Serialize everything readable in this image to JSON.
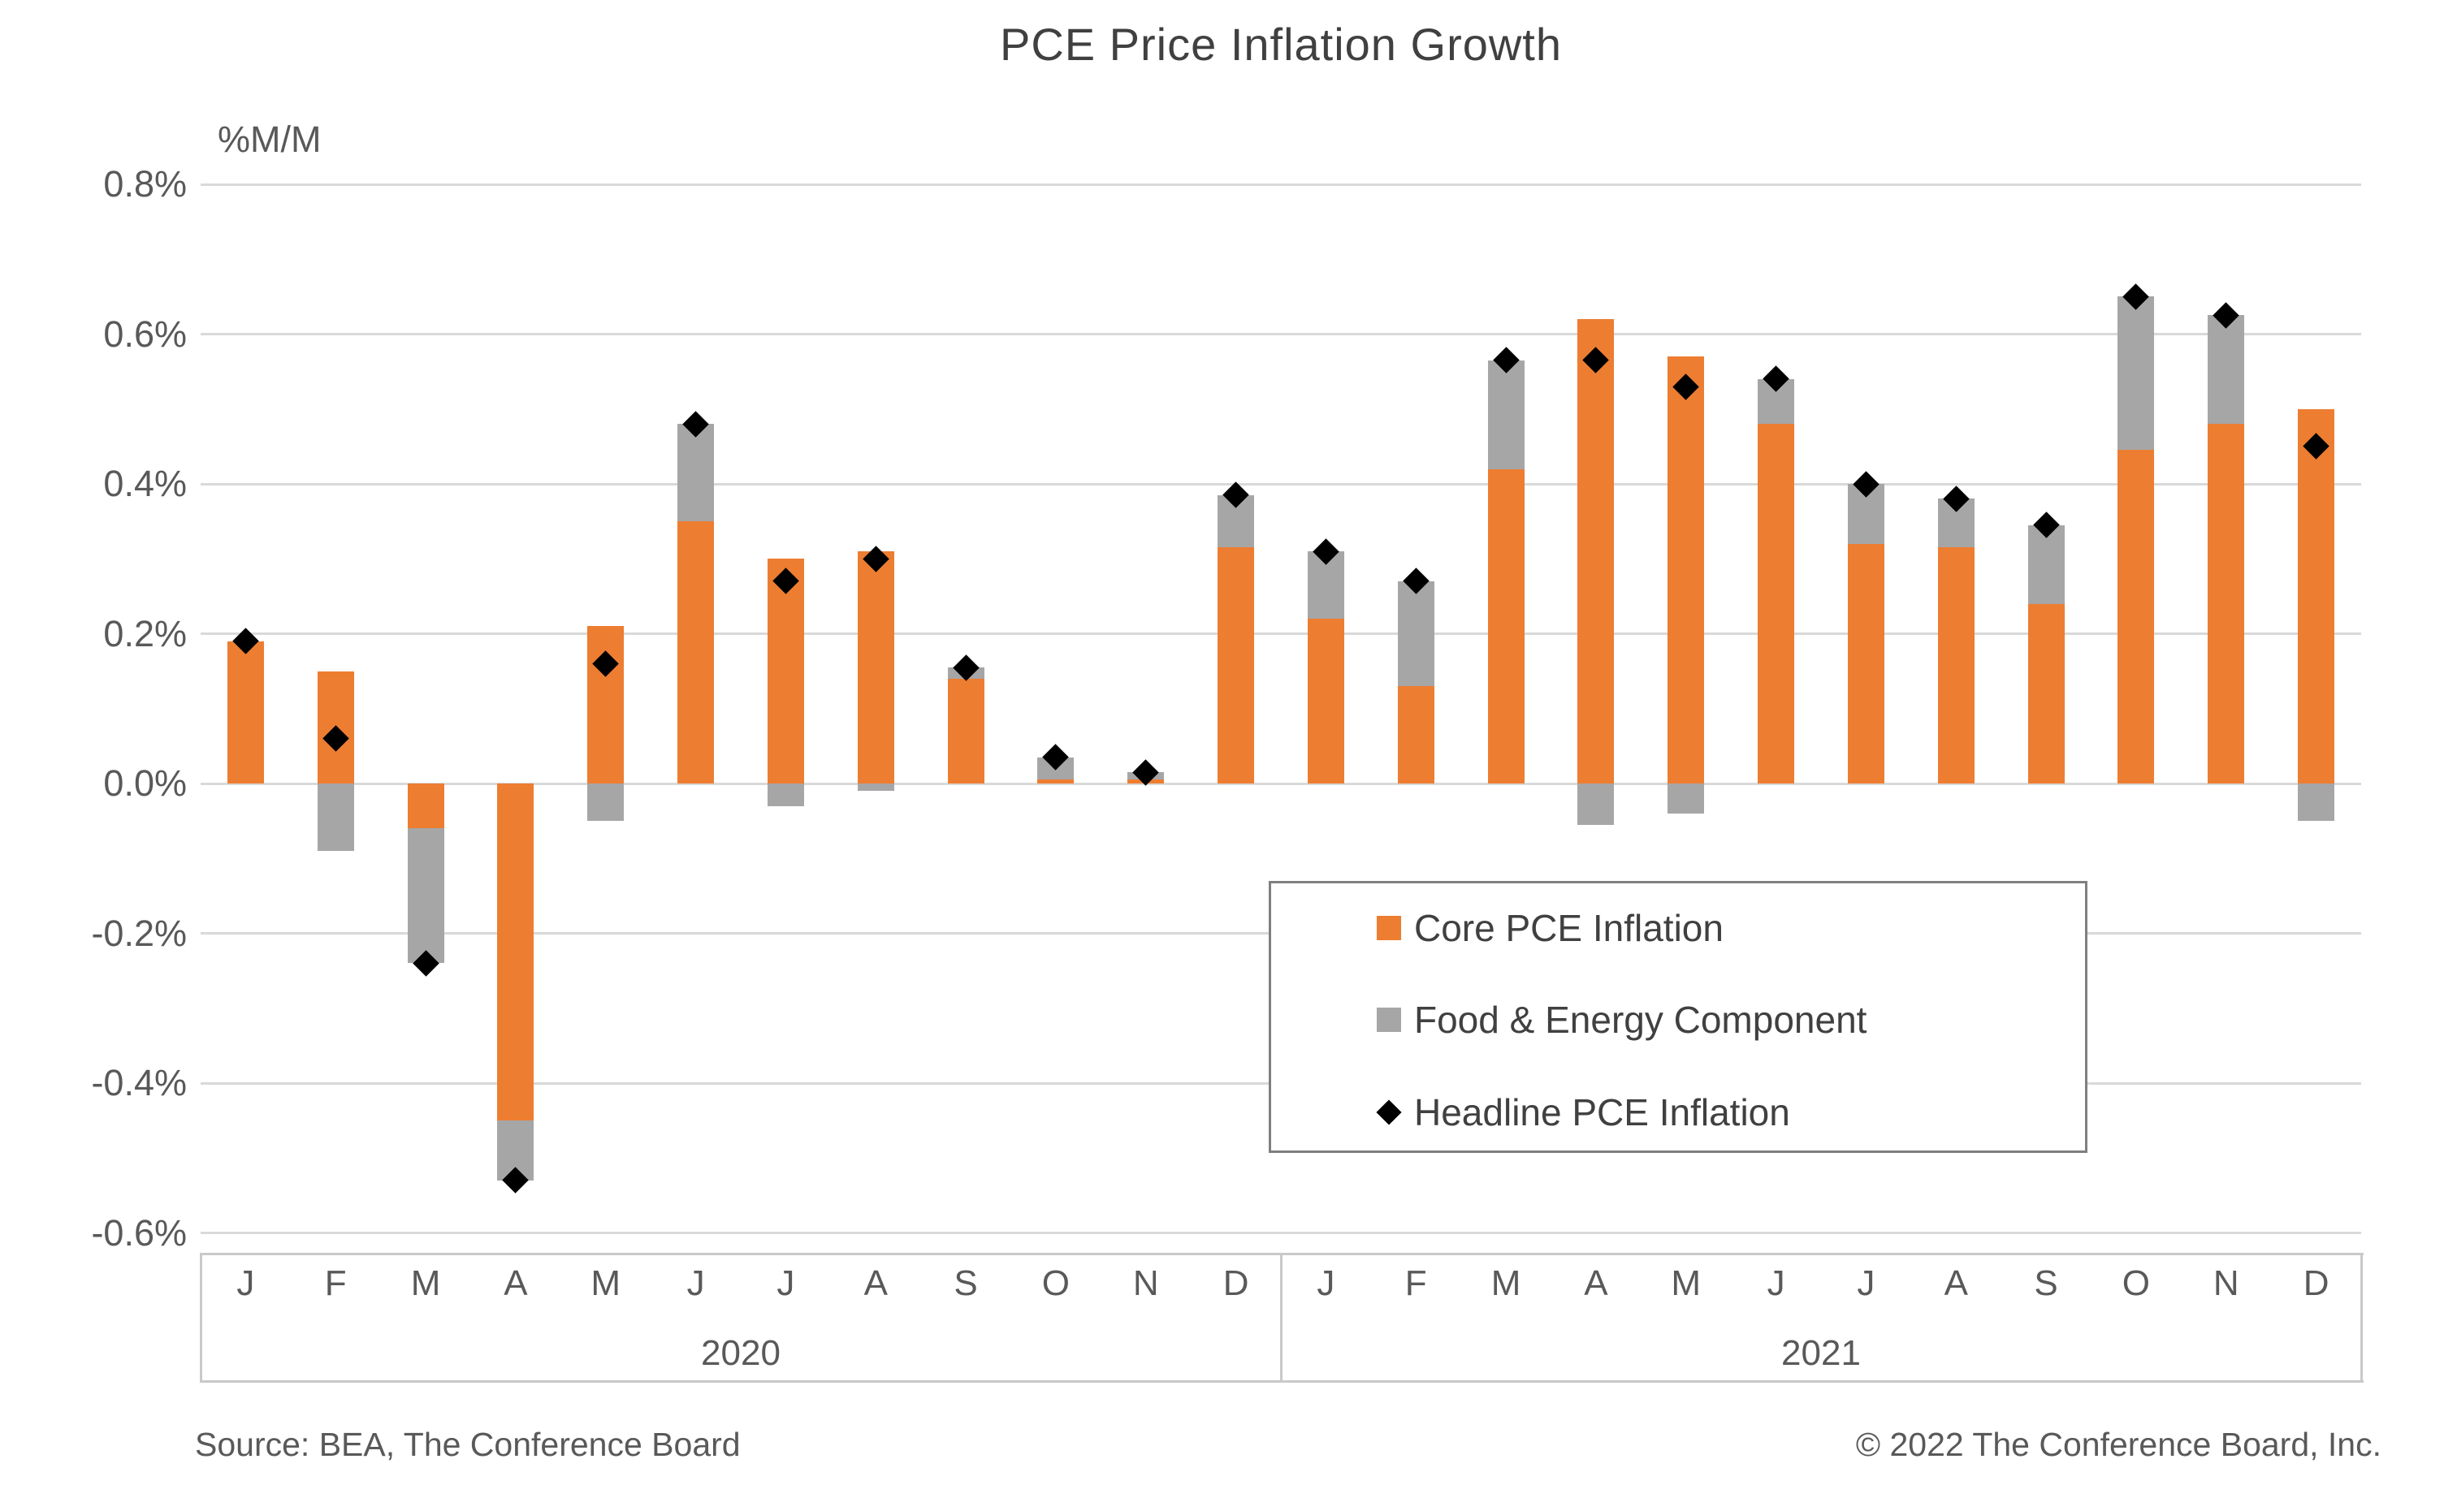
{
  "title": "PCE Price Inflation Growth",
  "y_axis": {
    "unit_label": "%M/M",
    "ticks": [
      "0.8%",
      "0.6%",
      "0.4%",
      "0.2%",
      "0.0%",
      "-0.2%",
      "-0.4%",
      "-0.6%"
    ],
    "tick_values": [
      0.8,
      0.6,
      0.4,
      0.2,
      0.0,
      -0.2,
      -0.4,
      -0.6
    ],
    "min": -0.6,
    "max": 0.8,
    "step": 0.2
  },
  "x_axis": {
    "month_labels": [
      "J",
      "F",
      "M",
      "A",
      "M",
      "J",
      "J",
      "A",
      "S",
      "O",
      "N",
      "D",
      "J",
      "F",
      "M",
      "A",
      "M",
      "J",
      "J",
      "A",
      "S",
      "O",
      "N",
      "D"
    ],
    "year_groups": [
      {
        "label": "2020",
        "span": 12
      },
      {
        "label": "2021",
        "span": 12
      }
    ]
  },
  "legend": {
    "items": [
      {
        "label": "Core PCE Inflation",
        "marker": "square",
        "color": "#ED7D31"
      },
      {
        "label": "Food & Energy Component",
        "marker": "square",
        "color": "#A6A6A6"
      },
      {
        "label": "Headline PCE Inflation",
        "marker": "diamond",
        "color": "#000000"
      }
    ]
  },
  "footer": {
    "source": "Source: BEA, The Conference Board",
    "copyright": "© 2022 The Conference Board, Inc."
  },
  "colors": {
    "core": "#ED7D31",
    "food_energy": "#A6A6A6",
    "headline": "#000000",
    "gridline": "#D9D9D9",
    "axis_line": "#C9C9C9",
    "text": "#595959",
    "title_text": "#404040"
  },
  "chart_data": {
    "type": "bar",
    "stacked": true,
    "title": "PCE Price Inflation Growth",
    "xlabel": "",
    "ylabel": "%M/M",
    "ylim": [
      -0.6,
      0.8
    ],
    "grid": true,
    "legend_position": "inside-right",
    "categories": [
      "Jan 2020",
      "Feb 2020",
      "Mar 2020",
      "Apr 2020",
      "May 2020",
      "Jun 2020",
      "Jul 2020",
      "Aug 2020",
      "Sep 2020",
      "Oct 2020",
      "Nov 2020",
      "Dec 2020",
      "Jan 2021",
      "Feb 2021",
      "Mar 2021",
      "Apr 2021",
      "May 2021",
      "Jun 2021",
      "Jul 2021",
      "Aug 2021",
      "Sep 2021",
      "Oct 2021",
      "Nov 2021",
      "Dec 2021"
    ],
    "series": [
      {
        "name": "Core PCE Inflation",
        "type": "bar",
        "color": "#ED7D31",
        "values": [
          0.19,
          0.15,
          -0.06,
          -0.45,
          0.21,
          0.35,
          0.3,
          0.31,
          0.14,
          0.005,
          0.005,
          0.315,
          0.22,
          0.13,
          0.42,
          0.62,
          0.57,
          0.48,
          0.32,
          0.315,
          0.24,
          0.445,
          0.48,
          0.5
        ]
      },
      {
        "name": "Food & Energy Component",
        "type": "bar",
        "color": "#A6A6A6",
        "values": [
          0.0,
          -0.09,
          -0.18,
          -0.08,
          -0.05,
          0.13,
          -0.03,
          -0.01,
          0.015,
          0.03,
          0.01,
          0.07,
          0.09,
          0.14,
          0.145,
          -0.055,
          -0.04,
          0.06,
          0.08,
          0.065,
          0.105,
          0.205,
          0.145,
          -0.05
        ]
      },
      {
        "name": "Headline PCE Inflation",
        "type": "scatter",
        "marker": "diamond",
        "color": "#000000",
        "values": [
          0.19,
          0.06,
          -0.24,
          -0.53,
          0.16,
          0.48,
          0.27,
          0.3,
          0.155,
          0.035,
          0.015,
          0.385,
          0.31,
          0.27,
          0.565,
          0.565,
          0.53,
          0.54,
          0.4,
          0.38,
          0.345,
          0.65,
          0.625,
          0.45
        ]
      }
    ]
  }
}
